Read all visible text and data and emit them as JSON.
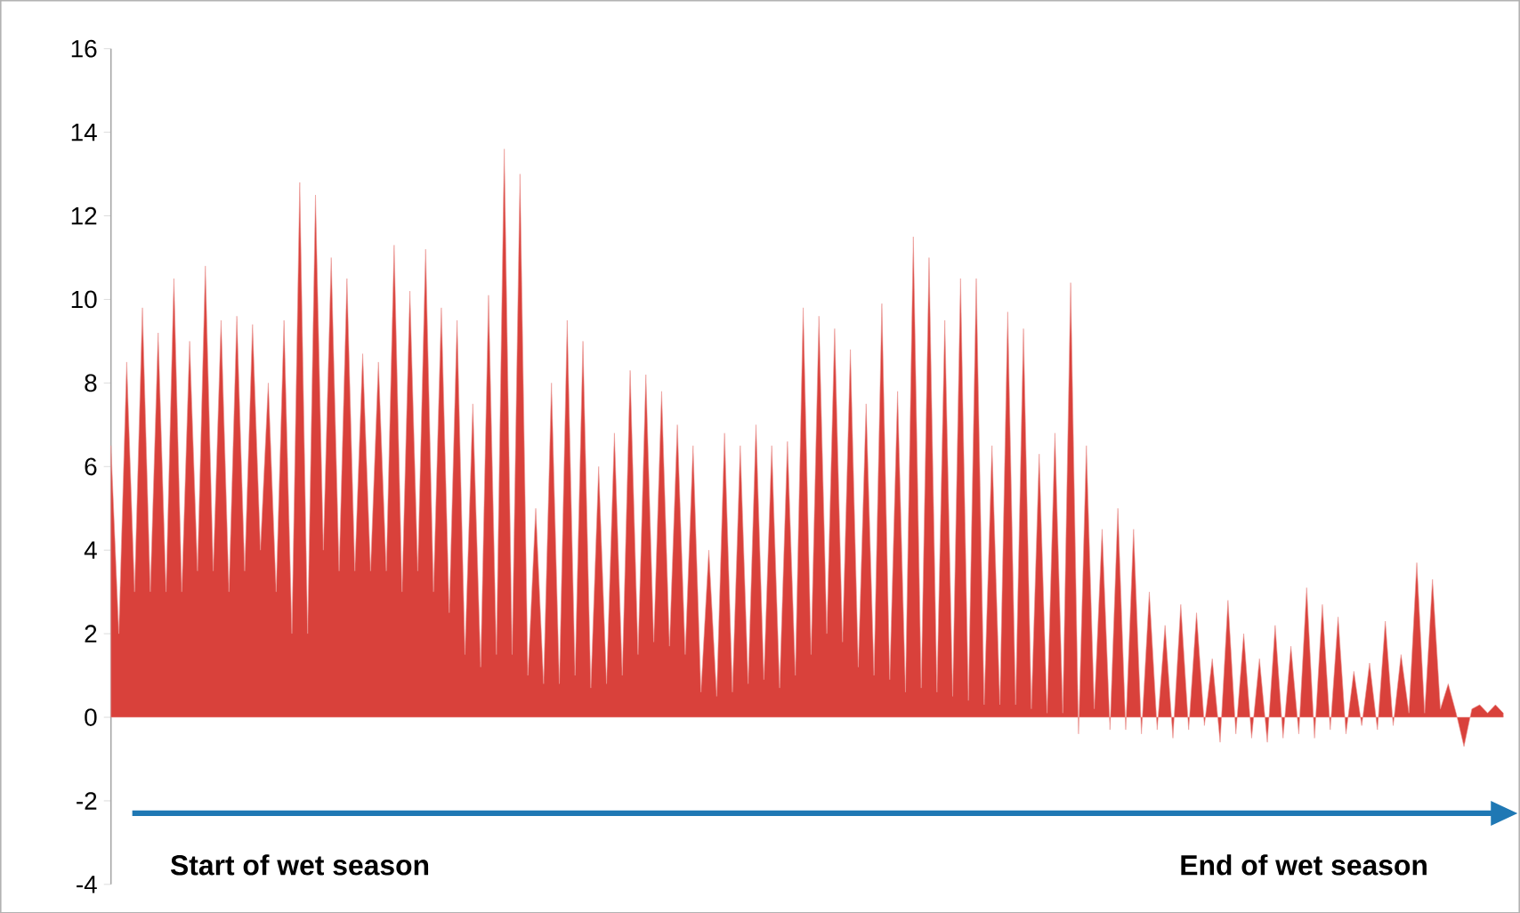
{
  "chart_data": {
    "type": "area",
    "categories": [
      null,
      null,
      null,
      null,
      null,
      null,
      null,
      null,
      null,
      null,
      null,
      null,
      null,
      null,
      null,
      null,
      null,
      null,
      null,
      null,
      null,
      null,
      null,
      null,
      null,
      null,
      null,
      null,
      null,
      null,
      null,
      null,
      null,
      null,
      null,
      null,
      null,
      null,
      null,
      null,
      null,
      null,
      null,
      null,
      null,
      null,
      null,
      null,
      null,
      null,
      null,
      null,
      null,
      null,
      null,
      null,
      null,
      null,
      null,
      null,
      null,
      null,
      null,
      null,
      null,
      null,
      null,
      null,
      null,
      null,
      null,
      null,
      null,
      null,
      null,
      null,
      null,
      null,
      null,
      null,
      null,
      null,
      null,
      null,
      null,
      null,
      null,
      null,
      null,
      null,
      null,
      null,
      null,
      null,
      null,
      null,
      null,
      null,
      null,
      null,
      null,
      null,
      null,
      null,
      null,
      null,
      null,
      null,
      null,
      null,
      null,
      null,
      null,
      null,
      null,
      null,
      null,
      null,
      null,
      null,
      null,
      null,
      null,
      null,
      null,
      null,
      null,
      null,
      null,
      null,
      null,
      null,
      null,
      null,
      null,
      null,
      null,
      null,
      null,
      null,
      null,
      null,
      null,
      null,
      null,
      null,
      null,
      null,
      null,
      null,
      null,
      null,
      null,
      null,
      null,
      null,
      null,
      null,
      null,
      null,
      null,
      null,
      null,
      null,
      null,
      null,
      null,
      null,
      null,
      null,
      null,
      null,
      null,
      null,
      null,
      null,
      null,
      null
    ],
    "values": [
      6.5,
      2,
      8.5,
      3,
      9.8,
      3,
      9.2,
      3,
      10.5,
      3,
      9,
      3.5,
      10.8,
      3.5,
      9.5,
      3,
      9.6,
      3.5,
      9.4,
      4,
      8,
      3,
      9.5,
      2,
      12.8,
      2,
      12.5,
      4,
      11,
      3.5,
      10.5,
      3.5,
      8.7,
      3.5,
      8.5,
      3.5,
      11.3,
      3,
      10.2,
      3.5,
      11.2,
      3,
      9.8,
      2.5,
      9.5,
      1.5,
      7.5,
      1.2,
      10.1,
      1.5,
      13.6,
      1.5,
      13,
      1,
      5,
      0.8,
      8,
      0.8,
      9.5,
      1,
      9,
      0.7,
      6,
      0.8,
      6.8,
      1,
      8.3,
      1.5,
      8.2,
      1.8,
      7.8,
      1.7,
      7,
      1.5,
      6.5,
      0.6,
      4,
      0.5,
      6.8,
      0.6,
      6.5,
      0.8,
      7,
      0.9,
      6.5,
      0.7,
      6.6,
      1,
      9.8,
      1.5,
      9.6,
      2,
      9.3,
      1.8,
      8.8,
      1.2,
      7.5,
      1,
      9.9,
      0.9,
      7.8,
      0.6,
      11.5,
      0.7,
      11,
      0.6,
      9.5,
      0.5,
      10.5,
      0.4,
      10.5,
      0.3,
      6.5,
      0.3,
      9.7,
      0.3,
      9.3,
      0.2,
      6.3,
      0.1,
      6.8,
      0.1,
      10.4,
      -0.4,
      6.5,
      0.2,
      4.5,
      -0.3,
      5,
      -0.3,
      4.5,
      -0.4,
      3,
      -0.3,
      2.2,
      -0.5,
      2.7,
      -0.3,
      2.5,
      -0.2,
      1.4,
      -0.6,
      2.8,
      -0.4,
      2,
      -0.5,
      1.4,
      -0.6,
      2.2,
      -0.5,
      1.7,
      -0.4,
      3.1,
      -0.5,
      2.7,
      -0.3,
      2.4,
      -0.4,
      1.1,
      -0.2,
      1.3,
      -0.3,
      2.3,
      -0.2,
      1.5,
      0.1,
      3.7,
      0.1,
      3.3,
      0.2,
      0.8,
      0.1,
      -0.7,
      0.2,
      0.3,
      0.1,
      0.3,
      0.1
    ],
    "color": "#d9413b",
    "ylim": [
      -4,
      16
    ],
    "yticks": [
      -4,
      -2,
      0,
      2,
      4,
      6,
      8,
      10,
      12,
      14,
      16
    ],
    "tick_labels": "y",
    "annotations": [
      "**Start of wet season**",
      "**End of wet season**"
    ]
  }
}
